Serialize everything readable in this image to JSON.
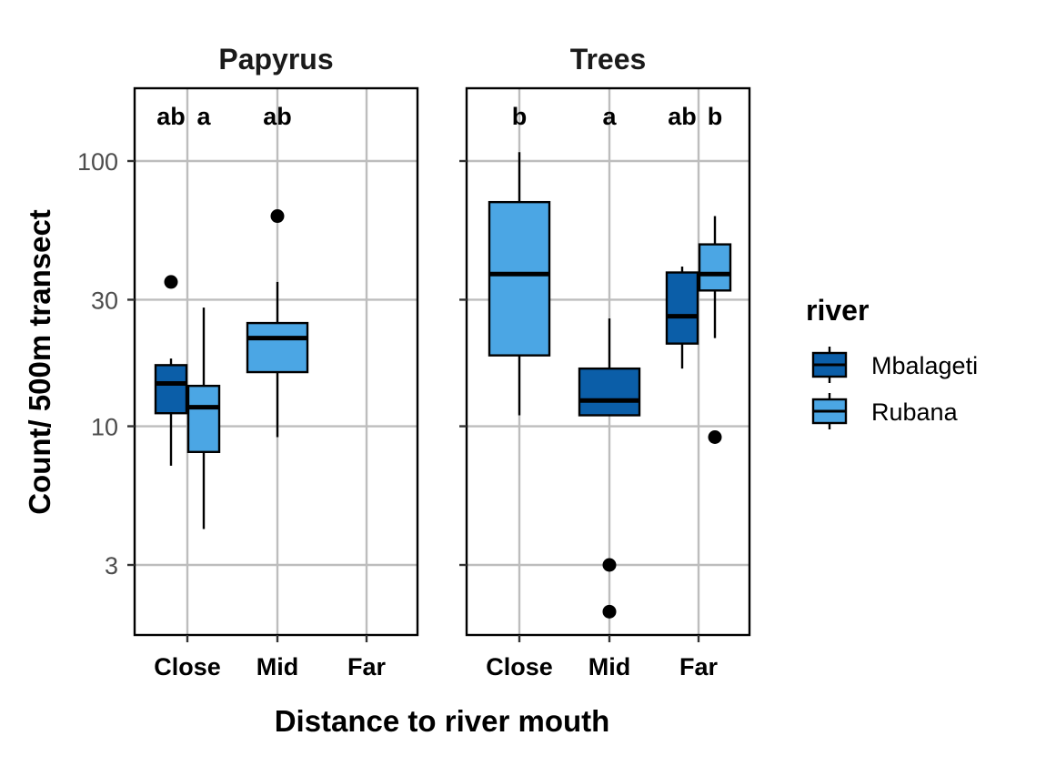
{
  "chart_data": {
    "type": "box",
    "ylabel": "Count/ 500m transect",
    "xlabel": "Distance to river mouth",
    "y_scale": "log10",
    "ylim": [
      1.7,
      170
    ],
    "y_ticks": [
      3,
      10,
      30,
      100
    ],
    "categories": [
      "Close",
      "Mid",
      "Far"
    ],
    "grid": true,
    "legend": {
      "title": "river",
      "placement": "right",
      "entries": [
        {
          "name": "Mbalageti",
          "color": "#0b5ea8"
        },
        {
          "name": "Rubana",
          "color": "#4ba6e4"
        }
      ]
    },
    "facets": [
      {
        "title": "Papyrus",
        "boxes": [
          {
            "category": "Close",
            "series": "Mbalageti",
            "whisker_low": 7.1,
            "q1": 11.2,
            "median": 14.5,
            "q3": 17.0,
            "whisker_high": 18.0,
            "outliers": [
              35
            ]
          },
          {
            "category": "Close",
            "series": "Rubana",
            "whisker_low": 4.1,
            "q1": 8.0,
            "median": 11.8,
            "q3": 14.2,
            "whisker_high": 28.0,
            "outliers": []
          },
          {
            "category": "Mid",
            "series": "Rubana",
            "whisker_low": 9.1,
            "q1": 16.0,
            "median": 21.5,
            "q3": 24.5,
            "whisker_high": 35.0,
            "outliers": [
              62
            ]
          }
        ],
        "letters": [
          {
            "category": "Close",
            "series": "Mbalageti",
            "text": "ab"
          },
          {
            "category": "Close",
            "series": "Rubana",
            "text": "a"
          },
          {
            "category": "Mid",
            "series": "Rubana",
            "text": "ab"
          }
        ]
      },
      {
        "title": "Trees",
        "boxes": [
          {
            "category": "Close",
            "series": "Rubana",
            "whisker_low": 11.0,
            "q1": 18.5,
            "median": 37.5,
            "q3": 70.0,
            "whisker_high": 108.0,
            "outliers": []
          },
          {
            "category": "Mid",
            "series": "Mbalageti",
            "whisker_low": 11.0,
            "q1": 11.0,
            "median": 12.5,
            "q3": 16.5,
            "whisker_high": 25.5,
            "outliers": [
              3.0,
              2.0
            ]
          },
          {
            "category": "Far",
            "series": "Mbalageti",
            "whisker_low": 16.5,
            "q1": 20.5,
            "median": 26.0,
            "q3": 38.0,
            "whisker_high": 40.0,
            "outliers": []
          },
          {
            "category": "Far",
            "series": "Rubana",
            "whisker_low": 21.5,
            "q1": 32.5,
            "median": 37.5,
            "q3": 48.5,
            "whisker_high": 62.0,
            "outliers": [
              9.1
            ]
          }
        ],
        "letters": [
          {
            "category": "Close",
            "series": "Rubana",
            "text": "b"
          },
          {
            "category": "Mid",
            "series": "Mbalageti",
            "text": "a"
          },
          {
            "category": "Far",
            "series": "Mbalageti",
            "text": "ab"
          },
          {
            "category": "Far",
            "series": "Rubana",
            "text": "b"
          }
        ]
      }
    ]
  }
}
